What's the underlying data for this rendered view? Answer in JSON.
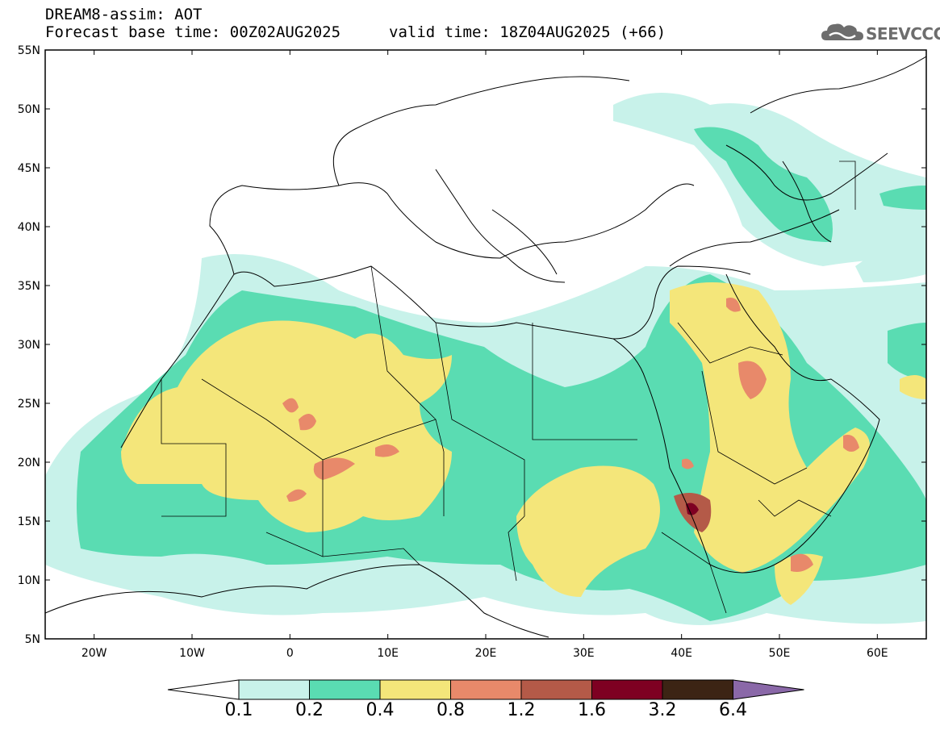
{
  "header": {
    "title_line1": "DREAM8-assim: AOT",
    "title_line2_left": "Forecast base time: 00Z02AUG2025",
    "title_line2_right": "valid time: 18Z04AUG2025 (+66)",
    "logo_text": "SEEVCCC"
  },
  "map": {
    "region": "North Africa, Europe and Middle East",
    "lon_range": [
      -25,
      65
    ],
    "lat_range": [
      5,
      55
    ],
    "lat_tick_labels": [
      "55N",
      "50N",
      "45N",
      "40N",
      "35N",
      "30N",
      "25N",
      "20N",
      "15N",
      "10N",
      "5N"
    ],
    "lon_tick_labels": [
      "20W",
      "10W",
      "0",
      "10E",
      "20E",
      "30E",
      "40E",
      "50E",
      "60E"
    ]
  },
  "colorbar": {
    "levels": [
      "0.1",
      "0.2",
      "0.4",
      "0.8",
      "1.2",
      "1.6",
      "3.2",
      "6.4"
    ],
    "colors": [
      "#ffffff",
      "#c8f2ea",
      "#5adcb2",
      "#f4e67a",
      "#e8896a",
      "#b45a48",
      "#7e0022",
      "#3c2414",
      "#8a68a8"
    ]
  },
  "colors": {
    "aot_0_1_0_2": "#c8f2ea",
    "aot_0_2_0_4": "#5adcb2",
    "aot_0_4_0_8": "#f4e67a",
    "aot_0_8_1_2": "#e8896a",
    "aot_1_2_1_6": "#b45a48",
    "aot_1_6_3_2": "#7e0022"
  }
}
